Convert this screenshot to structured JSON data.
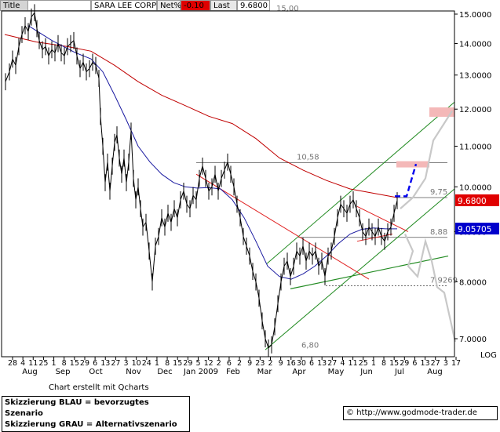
{
  "header": {
    "title_tab": "Title",
    "symbol": "SARA LEE CORP",
    "net_label": "Net%",
    "net_value": "-0.10",
    "last_label": "Last",
    "last_value": "9.6800"
  },
  "colors": {
    "price": "#000000",
    "ma_blue": "#1a1aa0",
    "ma_red": "#c00000",
    "downtrend": "#e02020",
    "channel": "#228b22",
    "scenario_blue": "#0000ee",
    "scenario_gray": "#c8c8c8",
    "target_zone": "#f4b8b8",
    "level_line": "#555555",
    "last_badge": "#e00000",
    "ma_badge": "#0000cc"
  },
  "chart_data": {
    "type": "line",
    "title": "SARA LEE CORP",
    "y_axis": {
      "scale": "log",
      "label": "LOG",
      "ticks": [
        "15.0000",
        "14.0000",
        "13.0000",
        "12.0000",
        "11.0000",
        "10.0000",
        "9.0000",
        "8.0000",
        "7.0000"
      ],
      "tick_values": [
        15,
        14,
        13,
        12,
        11,
        10,
        9,
        8,
        7
      ],
      "range": [
        6.55,
        15.9
      ]
    },
    "x_axis": {
      "month_labels": [
        "Aug",
        "Sep",
        "Oct",
        "Nov",
        "Dec",
        "Jan 2009",
        "Feb",
        "Mar",
        "Apr",
        "May",
        "Jun",
        "Jul",
        "Aug"
      ],
      "week_labels": [
        "28",
        "4",
        "11",
        "25",
        "1",
        "8",
        "15",
        "29",
        "6",
        "13",
        "27",
        "3",
        "10",
        "24",
        "1",
        "8",
        "15",
        "29",
        "5",
        "12",
        "2",
        "6",
        "2",
        "9",
        "23",
        "2",
        "9",
        "16",
        "30",
        "6",
        "13",
        "27",
        "4",
        "11",
        "25",
        "1",
        "8",
        "15",
        "29",
        "6",
        "13",
        "27",
        "3",
        "17"
      ]
    },
    "series": [
      {
        "name": "price",
        "values": [
          [
            1,
            12.8
          ],
          [
            6,
            13.1
          ],
          [
            10,
            13.5
          ],
          [
            14,
            13.3
          ],
          [
            18,
            13.9
          ],
          [
            22,
            14.3
          ],
          [
            26,
            14.6
          ],
          [
            30,
            14.4
          ],
          [
            34,
            14.9
          ],
          [
            38,
            15.05
          ],
          [
            41,
            14.5
          ],
          [
            44,
            14.1
          ],
          [
            48,
            13.8
          ],
          [
            52,
            13.9
          ],
          [
            56,
            13.6
          ],
          [
            60,
            13.8
          ],
          [
            64,
            13.7
          ],
          [
            68,
            14.0
          ],
          [
            72,
            13.7
          ],
          [
            76,
            13.6
          ],
          [
            80,
            13.9
          ],
          [
            84,
            14.0
          ],
          [
            88,
            14.1
          ],
          [
            92,
            13.6
          ],
          [
            96,
            13.2
          ],
          [
            100,
            13.4
          ],
          [
            104,
            13.1
          ],
          [
            108,
            13.2
          ],
          [
            112,
            13.4
          ],
          [
            116,
            13.3
          ],
          [
            120,
            12.9
          ],
          [
            122,
            11.8
          ],
          [
            125,
            11.0
          ],
          [
            128,
            10.1
          ],
          [
            131,
            10.6
          ],
          [
            134,
            9.9
          ],
          [
            137,
            10.5
          ],
          [
            140,
            11.1
          ],
          [
            143,
            11.3
          ],
          [
            146,
            10.7
          ],
          [
            149,
            10.3
          ],
          [
            152,
            10.7
          ],
          [
            155,
            10.1
          ],
          [
            158,
            10.6
          ],
          [
            161,
            11.4
          ],
          [
            164,
            10.2
          ],
          [
            167,
            9.7
          ],
          [
            170,
            10.0
          ],
          [
            173,
            9.5
          ],
          [
            176,
            9.1
          ],
          [
            180,
            9.2
          ],
          [
            184,
            8.6
          ],
          [
            188,
            8.0
          ],
          [
            192,
            8.7
          ],
          [
            196,
            8.9
          ],
          [
            200,
            9.3
          ],
          [
            204,
            9.1
          ],
          [
            208,
            9.4
          ],
          [
            212,
            9.2
          ],
          [
            216,
            9.5
          ],
          [
            220,
            9.3
          ],
          [
            224,
            9.7
          ],
          [
            228,
            9.9
          ],
          [
            232,
            9.6
          ],
          [
            236,
            9.5
          ],
          [
            240,
            9.8
          ],
          [
            244,
            9.7
          ],
          [
            248,
            10.2
          ],
          [
            252,
            10.5
          ],
          [
            256,
            10.2
          ],
          [
            260,
            9.9
          ],
          [
            264,
            10.0
          ],
          [
            268,
            10.3
          ],
          [
            272,
            9.9
          ],
          [
            276,
            10.2
          ],
          [
            280,
            10.4
          ],
          [
            284,
            10.6
          ],
          [
            288,
            10.3
          ],
          [
            292,
            10.0
          ],
          [
            296,
            9.6
          ],
          [
            300,
            9.3
          ],
          [
            304,
            8.9
          ],
          [
            308,
            8.7
          ],
          [
            312,
            8.5
          ],
          [
            316,
            8.2
          ],
          [
            320,
            8.0
          ],
          [
            324,
            7.7
          ],
          [
            328,
            7.3
          ],
          [
            332,
            7.0
          ],
          [
            336,
            6.85
          ],
          [
            340,
            6.9
          ],
          [
            344,
            7.2
          ],
          [
            348,
            7.6
          ],
          [
            352,
            8.0
          ],
          [
            356,
            8.3
          ],
          [
            360,
            8.4
          ],
          [
            364,
            8.1
          ],
          [
            368,
            8.3
          ],
          [
            372,
            8.6
          ],
          [
            376,
            8.5
          ],
          [
            380,
            8.7
          ],
          [
            384,
            8.4
          ],
          [
            388,
            8.6
          ],
          [
            392,
            8.5
          ],
          [
            396,
            8.6
          ],
          [
            400,
            8.3
          ],
          [
            404,
            8.4
          ],
          [
            408,
            8.1
          ],
          [
            412,
            8.5
          ],
          [
            416,
            8.6
          ],
          [
            420,
            8.9
          ],
          [
            424,
            9.3
          ],
          [
            428,
            9.6
          ],
          [
            432,
            9.5
          ],
          [
            436,
            9.4
          ],
          [
            440,
            9.6
          ],
          [
            444,
            9.7
          ],
          [
            448,
            9.5
          ],
          [
            452,
            9.3
          ],
          [
            456,
            9.0
          ],
          [
            460,
            8.9
          ],
          [
            464,
            9.1
          ],
          [
            468,
            9.0
          ],
          [
            472,
            8.9
          ],
          [
            476,
            9.1
          ],
          [
            480,
            8.9
          ],
          [
            484,
            8.8
          ],
          [
            488,
            9.0
          ],
          [
            492,
            9.1
          ],
          [
            496,
            9.4
          ],
          [
            500,
            9.68
          ]
        ]
      },
      {
        "name": "ma_fast",
        "values": [
          [
            30,
            14.6
          ],
          [
            60,
            14.1
          ],
          [
            90,
            13.7
          ],
          [
            110,
            13.5
          ],
          [
            125,
            13.1
          ],
          [
            140,
            12.4
          ],
          [
            155,
            11.7
          ],
          [
            170,
            11.0
          ],
          [
            185,
            10.6
          ],
          [
            200,
            10.3
          ],
          [
            215,
            10.1
          ],
          [
            230,
            10.0
          ],
          [
            245,
            9.97
          ],
          [
            260,
            9.98
          ],
          [
            275,
            9.95
          ],
          [
            290,
            9.7
          ],
          [
            305,
            9.3
          ],
          [
            320,
            8.8
          ],
          [
            335,
            8.3
          ],
          [
            350,
            8.1
          ],
          [
            365,
            8.05
          ],
          [
            380,
            8.15
          ],
          [
            395,
            8.3
          ],
          [
            410,
            8.5
          ],
          [
            425,
            8.75
          ],
          [
            440,
            8.95
          ],
          [
            455,
            9.05
          ],
          [
            470,
            9.08
          ],
          [
            485,
            9.06
          ],
          [
            500,
            9.06
          ]
        ]
      },
      {
        "name": "ma_slow",
        "values": [
          [
            0,
            14.3
          ],
          [
            40,
            14.05
          ],
          [
            80,
            13.9
          ],
          [
            110,
            13.75
          ],
          [
            140,
            13.3
          ],
          [
            170,
            12.8
          ],
          [
            200,
            12.4
          ],
          [
            230,
            12.1
          ],
          [
            260,
            11.8
          ],
          [
            290,
            11.6
          ],
          [
            320,
            11.2
          ],
          [
            350,
            10.7
          ],
          [
            380,
            10.4
          ],
          [
            410,
            10.15
          ],
          [
            440,
            9.95
          ],
          [
            470,
            9.85
          ],
          [
            500,
            9.75
          ]
        ]
      }
    ],
    "annotations": [
      {
        "text": "15,00",
        "value": 15.0
      },
      {
        "text": "10,58",
        "value": 10.58
      },
      {
        "text": "9,75",
        "value": 9.75
      },
      {
        "text": "8,88",
        "value": 8.88
      },
      {
        "text": "7,9269",
        "value": 7.9269
      },
      {
        "text": "6,80",
        "value": 6.8
      }
    ],
    "price_badges": [
      {
        "text": "9.6800",
        "value": 9.68
      },
      {
        "text": "9.05705",
        "value": 9.05705
      }
    ],
    "log_label": "LOG",
    "credit": "Chart erstellt mit Qcharts"
  },
  "legend": {
    "line1": "Skizzierung BLAU = bevorzugtes Szenario",
    "line2": "Skizzierung GRAU = Alternativszenario"
  },
  "footer": {
    "copyright_symbol": "©",
    "url": "http://www.godmode-trader.de"
  }
}
